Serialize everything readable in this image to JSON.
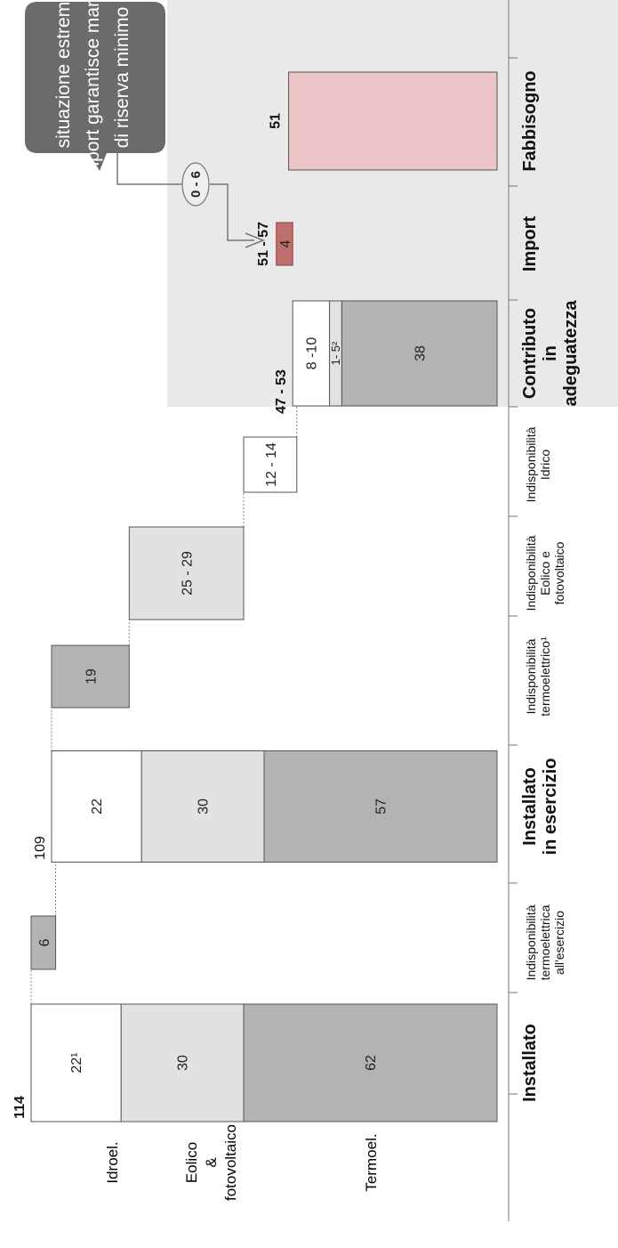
{
  "chart_data": {
    "type": "bar",
    "rows": [
      "Idroel.",
      "Eolico & fotovoltaico",
      "Termoel."
    ],
    "row_labels": {
      "hydro": "Idroel.",
      "wind_1": "Eolico",
      "wind_2": "&",
      "wind_3": "fotovoltaico",
      "thermal": "Termoel."
    },
    "categories": [
      {
        "key": "installato",
        "label": [
          "Installato"
        ],
        "bold": true
      },
      {
        "key": "indisp_term_eserc",
        "label": [
          "Indisponibilità",
          "termoelettrica",
          "all'esercizio"
        ],
        "bold": false
      },
      {
        "key": "installato_esercizio",
        "label": [
          "Installato",
          "in esercizio"
        ],
        "bold": true
      },
      {
        "key": "indisp_term",
        "label": [
          "Indisponibilità",
          "termoelettrico¹"
        ],
        "bold": false
      },
      {
        "key": "indisp_eolico",
        "label": [
          "Indisponibilità",
          "Eolico e",
          "fotovoltaico"
        ],
        "bold": false
      },
      {
        "key": "indisp_idrico",
        "label": [
          "Indisponibilità",
          "Idrico"
        ],
        "bold": false
      },
      {
        "key": "contributo",
        "label": [
          "Contributo",
          "in",
          "adeguatezza"
        ],
        "bold": true
      },
      {
        "key": "import",
        "label": [
          "Import"
        ],
        "bold": true
      },
      {
        "key": "fabbisogno",
        "label": [
          "Fabbisogno"
        ],
        "bold": true
      }
    ],
    "bars": [
      {
        "category": "installato",
        "total": "114",
        "segments": [
          {
            "series": "Termoel.",
            "value": 62,
            "label": "62",
            "color": "#b3b3b3"
          },
          {
            "series": "Eolico & fotovoltaico",
            "value": 30,
            "label": "30",
            "color": "#e2e2e2"
          },
          {
            "series": "Idroel.",
            "value": 22,
            "label": "22¹",
            "color": "#ffffff"
          }
        ]
      },
      {
        "category": "indisp_term_eserc",
        "floating": [
          108,
          114
        ],
        "label": "6",
        "color": "#b3b3b3"
      },
      {
        "category": "installato_esercizio",
        "total": "109",
        "segments": [
          {
            "series": "Termoel.",
            "value": 57,
            "label": "57",
            "color": "#b3b3b3"
          },
          {
            "series": "Eolico & fotovoltaico",
            "value": 30,
            "label": "30",
            "color": "#e2e2e2"
          },
          {
            "series": "Idroel.",
            "value": 22,
            "label": "22",
            "color": "#ffffff"
          }
        ]
      },
      {
        "category": "indisp_term",
        "floating": [
          90,
          109
        ],
        "label": "19",
        "color": "#b3b3b3"
      },
      {
        "category": "indisp_eolico",
        "floating": [
          62,
          90
        ],
        "label": "25 - 29",
        "color": "#e2e2e2"
      },
      {
        "category": "indisp_idrico",
        "floating": [
          49,
          62
        ],
        "label": "12 - 14",
        "color": "#ffffff"
      },
      {
        "category": "contributo",
        "total": "47 - 53",
        "segments": [
          {
            "series": "Termoel.",
            "value": 38,
            "label": "38",
            "color": "#b3b3b3"
          },
          {
            "series": "Eolico & fotovoltaico",
            "value": 3,
            "label": "1- 5²",
            "color": "#e2e2e2"
          },
          {
            "series": "Idroel.",
            "value": 9,
            "label": "8 -10",
            "color": "#ffffff"
          }
        ]
      },
      {
        "category": "import",
        "floating": [
          50,
          54
        ],
        "total": "51 - 57",
        "label": "4",
        "color": "#bf6f6b"
      },
      {
        "category": "fabbisogno",
        "floating": [
          0,
          51
        ],
        "total": "51",
        "color": "#ecc5c7"
      }
    ],
    "annotations": {
      "range_bubble": "0 - 6",
      "callout": [
        "In situazione estreme,",
        "l'import garantisce margine",
        "di riserva minimo"
      ]
    },
    "ylim": [
      0,
      114
    ],
    "highlight_categories": [
      "contributo",
      "import",
      "fabbisogno"
    ],
    "highlight_color": "#e9e9e9",
    "callout_color": "#6b6b6b"
  }
}
